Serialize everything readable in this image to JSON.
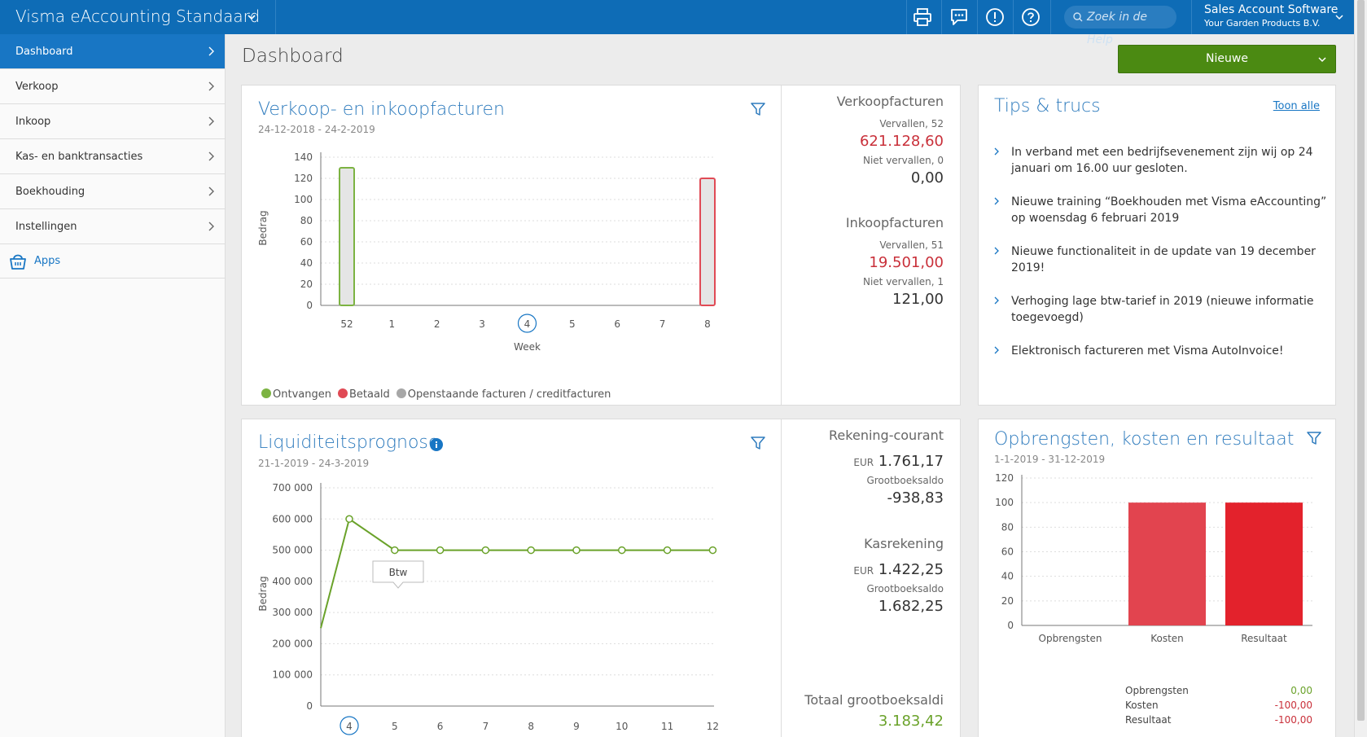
{
  "app": {
    "title": "Visma eAccounting Standaard",
    "search_placeholder": "Zoek in de Help",
    "account_name": "Sales Account Software",
    "company": "Your Garden Products B.V."
  },
  "sidebar": {
    "items": [
      "Dashboard",
      "Verkoop",
      "Inkoop",
      "Kas- en banktransacties",
      "Boekhouding",
      "Instellingen"
    ],
    "apps": "Apps"
  },
  "page": {
    "title": "Dashboard",
    "new_button": "Nieuwe"
  },
  "invoices": {
    "title": "Verkoop- en inkoopfacturen",
    "range": "24-12-2018 - 24-2-2019",
    "legend": [
      "Ontvangen",
      "Betaald",
      "Openstaande facturen / creditfacturen"
    ],
    "sales_label": "Verkoopfacturen",
    "sales_overdue": "Vervallen, 52",
    "sales_overdue_amount": "621.128,60",
    "sales_not_overdue": "Niet vervallen, 0",
    "sales_not_overdue_amount": "0,00",
    "purchase_label": "Inkoopfacturen",
    "purchase_overdue": "Vervallen, 51",
    "purchase_overdue_amount": "19.501,00",
    "purchase_not_overdue": "Niet vervallen, 1",
    "purchase_not_overdue_amount": "121,00"
  },
  "tips": {
    "title": "Tips & trucs",
    "show_all": "Toon alle",
    "items": [
      "In verband met een bedrijfsevenement zijn wij op 24 januari om 16.00 uur gesloten.",
      "Nieuwe training “Boekhouden met Visma eAccounting” op woensdag 6 februari 2019",
      "Nieuwe functionaliteit in de update van 19 december 2019!",
      "Verhoging lage btw-tarief in 2019 (nieuwe informatie toegevoegd)",
      "Elektronisch factureren met Visma AutoInvoice!"
    ]
  },
  "liquidity": {
    "title": "Liquiditeitsprognose",
    "range": "21-1-2019 - 24-3-2019",
    "tooltip": "Btw",
    "current_label": "Rekening-courant",
    "currency": "EUR",
    "current_amount": "1.761,17",
    "ledger_label": "Grootboeksaldo",
    "current_ledger": "-938,83",
    "cash_label": "Kasrekening",
    "cash_amount": "1.422,25",
    "cash_ledger": "1.682,25",
    "total_label": "Totaal grootboeksaldi",
    "total_amount": "3.183,42"
  },
  "results": {
    "title": "Opbrengsten, kosten en resultaat",
    "range": "1-1-2019 - 31-12-2019",
    "rows": [
      {
        "label": "Opbrengsten",
        "value": "0,00"
      },
      {
        "label": "Kosten",
        "value": "-100,00"
      },
      {
        "label": "Resultaat",
        "value": "-100,00"
      }
    ]
  },
  "chart_data": [
    {
      "type": "bar",
      "categories": [
        "52",
        "1",
        "2",
        "3",
        "4",
        "5",
        "6",
        "7",
        "8"
      ],
      "series": [
        {
          "name": "Ontvangen",
          "values": [
            130,
            0,
            0,
            0,
            0,
            0,
            0,
            0,
            0
          ],
          "color": "#7cb342"
        },
        {
          "name": "Betaald",
          "values": [
            0,
            0,
            0,
            0,
            0,
            0,
            0,
            0,
            120
          ],
          "color": "#e04a55"
        }
      ],
      "xlabel": "Week",
      "ylabel": "Bedrag",
      "ylim": [
        0,
        140
      ],
      "yticks": [
        0,
        20,
        40,
        60,
        80,
        100,
        120,
        140
      ],
      "highlight_category": "4"
    },
    {
      "type": "line",
      "x": [
        "4",
        "5",
        "6",
        "7",
        "8",
        "9",
        "10",
        "11",
        "12"
      ],
      "values": [
        600000,
        500000,
        500000,
        500000,
        500000,
        500000,
        500000,
        500000,
        500000
      ],
      "start_value": 250000,
      "xlabel": "Week",
      "ylabel": "Bedrag",
      "ylim": [
        0,
        700000
      ],
      "yticks": [
        "0",
        "100 000",
        "200 000",
        "300 000",
        "400 000",
        "500 000",
        "600 000",
        "700 000"
      ],
      "color": "#6aa22a"
    },
    {
      "type": "bar",
      "categories": [
        "Opbrengsten",
        "Kosten",
        "Resultaat"
      ],
      "values": [
        0,
        100,
        100
      ],
      "colors": [
        "#e04a55",
        "#e2444f",
        "#e3222c"
      ],
      "ylim": [
        0,
        120
      ],
      "yticks": [
        0,
        20,
        40,
        60,
        80,
        100,
        120
      ]
    }
  ],
  "colors": {
    "topbar": "#0e6cb6",
    "accent": "#1876c4",
    "button": "#4b8a12"
  }
}
